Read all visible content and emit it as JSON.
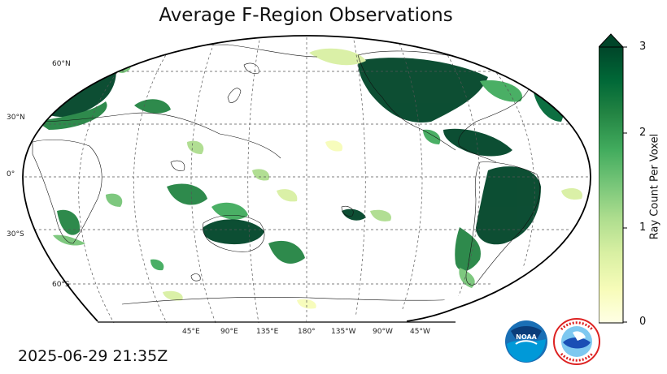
{
  "title": "Average F-Region Observations",
  "timestamp": "2025-06-29 21:35Z",
  "lat_labels": [
    "60°N",
    "30°N",
    "0°",
    "30°S",
    "60°S"
  ],
  "lon_labels": [
    "45°E",
    "90°E",
    "135°E",
    "180°",
    "135°W",
    "90°W",
    "45°W"
  ],
  "colorbar": {
    "label": "Ray Count Per Voxel",
    "ticks": [
      "0",
      "1",
      "2",
      "3"
    ],
    "min": 0,
    "max": 3,
    "extend": "max",
    "colors": [
      "#ffffe5",
      "#f7fcb9",
      "#d9f0a3",
      "#addd8e",
      "#78c679",
      "#41ab5d",
      "#238443",
      "#006837",
      "#004529"
    ]
  },
  "logos": {
    "noaa": "NOAA",
    "nws": "NATIONAL WEATHER SERVICE"
  }
}
